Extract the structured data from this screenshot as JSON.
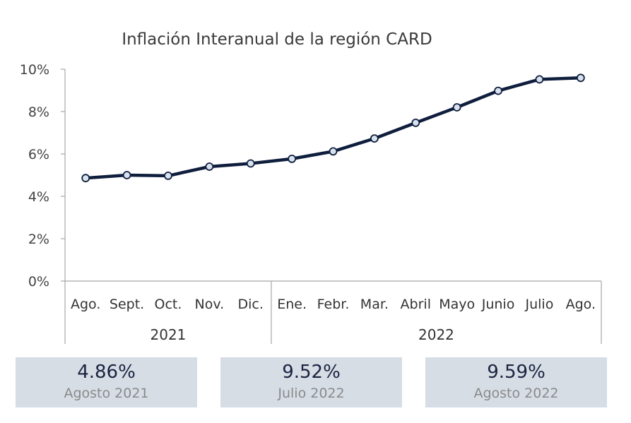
{
  "chart_data": {
    "type": "line",
    "title": "Inflación Interanual de la región CARD",
    "categories": [
      "Ago.",
      "Sept.",
      "Oct.",
      "Nov.",
      "Dic.",
      "Ene.",
      "Febr.",
      "Mar.",
      "Abril",
      "Mayo",
      "Junio",
      "Julio",
      "Ago."
    ],
    "year_groups": [
      {
        "label": "2021",
        "count": 5
      },
      {
        "label": "2022",
        "count": 8
      }
    ],
    "series": [
      {
        "values": [
          4.86,
          5.0,
          4.97,
          5.4,
          5.55,
          5.77,
          6.12,
          6.73,
          7.47,
          8.2,
          8.98,
          9.52,
          9.59
        ]
      }
    ],
    "y_ticks": [
      "0%",
      "2%",
      "4%",
      "6%",
      "8%",
      "10%"
    ],
    "ylim": [
      0,
      10
    ],
    "grid": false,
    "line_color": "#0f1e3d",
    "marker_fill": "#d9e3f0"
  },
  "cards": [
    {
      "value": "4.86%",
      "label": "Agosto 2021"
    },
    {
      "value": "9.52%",
      "label": "Julio 2022"
    },
    {
      "value": "9.59%",
      "label": "Agosto 2022"
    }
  ]
}
